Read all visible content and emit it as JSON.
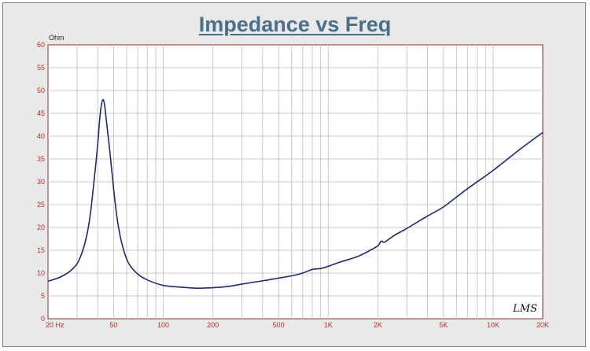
{
  "chart_data": {
    "type": "line",
    "title": "Impedance vs Freq",
    "y_unit": "Ohm",
    "x_scale": "log",
    "xlim": [
      20,
      20000
    ],
    "ylim": [
      0,
      60
    ],
    "grid": true,
    "yticks": [
      0,
      5,
      10,
      15,
      20,
      25,
      30,
      35,
      40,
      45,
      50,
      55,
      60
    ],
    "xticks": [
      {
        "v": 20,
        "label": "20 Hz"
      },
      {
        "v": 50,
        "label": "50"
      },
      {
        "v": 100,
        "label": "100"
      },
      {
        "v": 200,
        "label": "200"
      },
      {
        "v": 500,
        "label": "500"
      },
      {
        "v": 1000,
        "label": "1K"
      },
      {
        "v": 2000,
        "label": "2K"
      },
      {
        "v": 5000,
        "label": "5K"
      },
      {
        "v": 10000,
        "label": "10K"
      },
      {
        "v": 20000,
        "label": "20K"
      }
    ],
    "series": [
      {
        "color": "#1f2a6e",
        "points": [
          [
            20,
            8.2
          ],
          [
            24,
            9.2
          ],
          [
            28,
            10.8
          ],
          [
            31,
            13.0
          ],
          [
            34,
            17.5
          ],
          [
            36,
            22.5
          ],
          [
            38,
            30.0
          ],
          [
            40,
            38.0
          ],
          [
            41,
            43.0
          ],
          [
            42,
            46.5
          ],
          [
            43,
            48.0
          ],
          [
            44,
            47.0
          ],
          [
            45,
            44.0
          ],
          [
            47,
            38.0
          ],
          [
            50,
            28.5
          ],
          [
            53,
            21.0
          ],
          [
            57,
            15.5
          ],
          [
            62,
            12.0
          ],
          [
            70,
            9.8
          ],
          [
            80,
            8.5
          ],
          [
            100,
            7.3
          ],
          [
            130,
            6.9
          ],
          [
            160,
            6.7
          ],
          [
            200,
            6.8
          ],
          [
            250,
            7.1
          ],
          [
            300,
            7.6
          ],
          [
            400,
            8.3
          ],
          [
            500,
            8.9
          ],
          [
            600,
            9.4
          ],
          [
            700,
            10.0
          ],
          [
            800,
            10.8
          ],
          [
            900,
            11.0
          ],
          [
            1000,
            11.5
          ],
          [
            1200,
            12.5
          ],
          [
            1500,
            13.6
          ],
          [
            1800,
            15.0
          ],
          [
            2000,
            16.0
          ],
          [
            2100,
            17.0
          ],
          [
            2200,
            16.8
          ],
          [
            2500,
            18.2
          ],
          [
            3000,
            19.8
          ],
          [
            4000,
            22.5
          ],
          [
            5000,
            24.5
          ],
          [
            7000,
            28.5
          ],
          [
            10000,
            32.5
          ],
          [
            15000,
            37.5
          ],
          [
            20000,
            40.8
          ]
        ]
      }
    ]
  },
  "signature_text": "LMS"
}
